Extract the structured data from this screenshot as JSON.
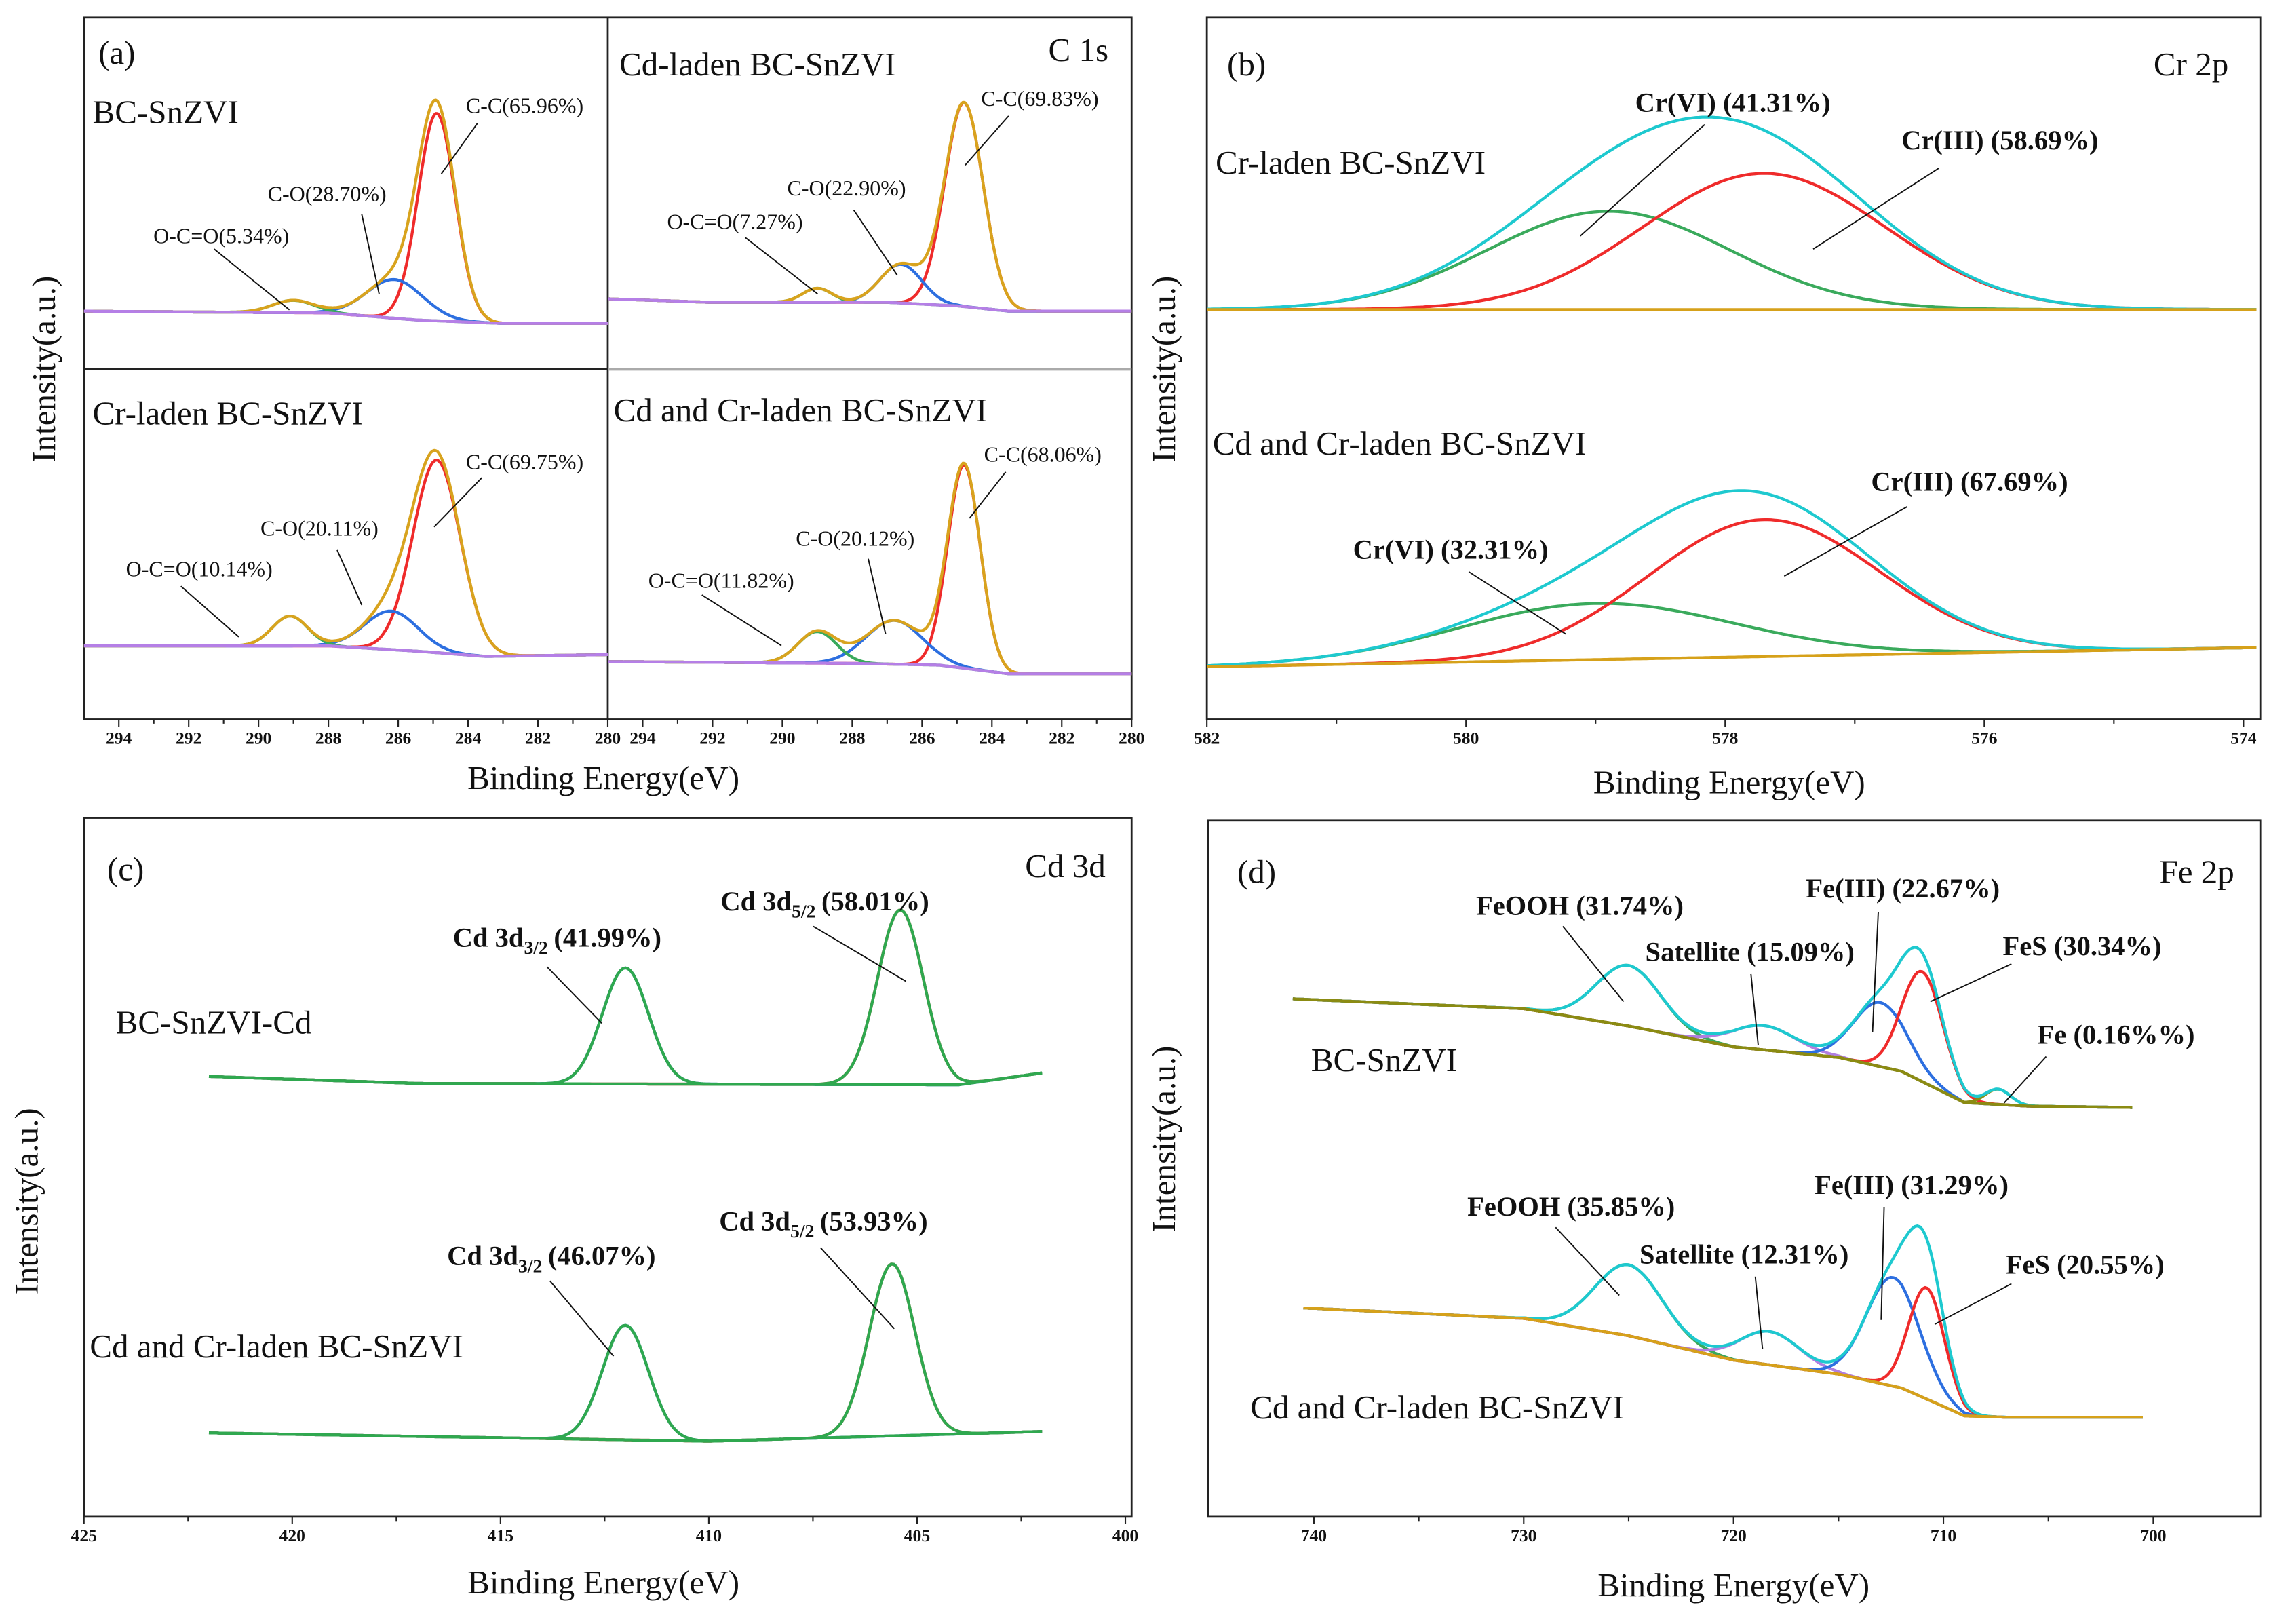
{
  "colors": {
    "envelope_c1s": "#d8a31e",
    "cc": "#ef2b2b",
    "co": "#2d6fe0",
    "oco": "#3aaa5c",
    "baseline_c1s": "#b57fe6",
    "envelope_cyan": "#1ec9cf",
    "baseline_orange": "#d6a11a",
    "baseline_green": "#2fa84f",
    "satellite": "#b07fe0",
    "fe0": "#8b8b12",
    "baseline_olive": "#8b8b12"
  },
  "chart_data": [
    {
      "type": "line",
      "panel_label": "(a)",
      "element": "C 1s",
      "xlabel": "Binding Energy(eV)",
      "ylabel": "Intensity(a.u.)",
      "xlim": [
        295,
        280
      ],
      "xticks": [
        294,
        292,
        290,
        288,
        286,
        284,
        282,
        280
      ],
      "subplots": [
        {
          "name": "BC-SnZVI",
          "ylim": [
            0,
            100
          ],
          "x_range": [
            295,
            280
          ],
          "envelope_color": "envelope_c1s",
          "baseline_color": "baseline_c1s",
          "baseline": [
            [
              295,
              16.5
            ],
            [
              288,
              16
            ],
            [
              285.5,
              14
            ],
            [
              283,
              13
            ],
            [
              280,
              13
            ]
          ],
          "peaks": [
            {
              "name": "C-C",
              "label": "C-C(65.96%)",
              "center": 284.9,
              "height": 59,
              "fwhm": 1.25,
              "color": "cc"
            },
            {
              "name": "C-O",
              "label": "C-O(28.70%)",
              "center": 286.1,
              "height": 11,
              "fwhm": 1.9,
              "color": "co"
            },
            {
              "name": "O-C=O",
              "label": "O-C=O(5.34%)",
              "center": 289.0,
              "height": 3.5,
              "fwhm": 1.4,
              "color": "oco"
            }
          ]
        },
        {
          "name": "Cd-laden BC-SnZVI",
          "ylim": [
            0,
            100
          ],
          "x_range": [
            295,
            280
          ],
          "envelope_color": "envelope_c1s",
          "baseline_color": "baseline_c1s",
          "baseline": [
            [
              295,
              20
            ],
            [
              292,
              19
            ],
            [
              287,
              19
            ],
            [
              285,
              18
            ],
            [
              283.5,
              16.5
            ],
            [
              280,
              16.5
            ]
          ],
          "peaks": [
            {
              "name": "C-C",
              "label": "C-C(69.83%)",
              "center": 284.8,
              "height": 58,
              "fwhm": 1.3,
              "color": "cc"
            },
            {
              "name": "C-O",
              "label": "C-O(22.90%)",
              "center": 286.6,
              "height": 11,
              "fwhm": 1.4,
              "color": "co"
            },
            {
              "name": "O-C=O",
              "label": "O-C=O(7.27%)",
              "center": 289.0,
              "height": 4,
              "fwhm": 1.0,
              "color": "oco"
            }
          ]
        },
        {
          "name": "Cr-laden BC-SnZVI",
          "ylim": [
            0,
            100
          ],
          "x_range": [
            295,
            280
          ],
          "envelope_color": "envelope_c1s",
          "baseline_color": "baseline_c1s",
          "baseline": [
            [
              295,
              21
            ],
            [
              288,
              21
            ],
            [
              285.5,
              19.5
            ],
            [
              283.5,
              18
            ],
            [
              280,
              18.5
            ]
          ],
          "peaks": [
            {
              "name": "C-C",
              "label": "C-C(69.75%)",
              "center": 284.9,
              "height": 55,
              "fwhm": 1.6,
              "color": "cc"
            },
            {
              "name": "C-O",
              "label": "C-O(20.11%)",
              "center": 286.2,
              "height": 11,
              "fwhm": 1.8,
              "color": "co"
            },
            {
              "name": "O-C=O",
              "label": "O-C=O(10.14%)",
              "center": 289.1,
              "height": 8.5,
              "fwhm": 1.2,
              "color": "oco"
            }
          ]
        },
        {
          "name": "Cd and Cr-laden BC-SnZVI",
          "ylim": [
            0,
            100
          ],
          "x_range": [
            295,
            280
          ],
          "envelope_color": "envelope_c1s",
          "baseline_color": "baseline_c1s",
          "baseline": [
            [
              295,
              16.5
            ],
            [
              288,
              16
            ],
            [
              285.5,
              15.5
            ],
            [
              283.5,
              13
            ],
            [
              280,
              13
            ]
          ],
          "peaks": [
            {
              "name": "C-C",
              "label": "C-C(68.06%)",
              "center": 284.8,
              "height": 58,
              "fwhm": 1.1,
              "color": "cc"
            },
            {
              "name": "C-O",
              "label": "C-O(20.12%)",
              "center": 286.8,
              "height": 12.5,
              "fwhm": 1.9,
              "color": "co"
            },
            {
              "name": "O-C=O",
              "label": "O-C=O(11.82%)",
              "center": 289.0,
              "height": 9,
              "fwhm": 1.3,
              "color": "oco"
            }
          ]
        }
      ]
    },
    {
      "type": "line",
      "panel_label": "(b)",
      "element": "Cr 2p",
      "xlabel": "Binding Energy(eV)",
      "ylabel": "Intensity(a.u.)",
      "xlim": [
        582,
        573.87
      ],
      "xticks": [
        582,
        580,
        578,
        576,
        574
      ],
      "subplots": [
        {
          "name": "Cr-laden BC-SnZVI",
          "ylim": [
            0,
            100
          ],
          "x_range": [
            582,
            573.9
          ],
          "envelope_color": "envelope_cyan",
          "baseline_color": "baseline_orange",
          "baseline": [
            [
              582,
              58.4
            ],
            [
              574,
              58.4
            ]
          ],
          "peaks": [
            {
              "name": "Cr(VI)",
              "label": "Cr(VI) (41.31%)",
              "center": 578.9,
              "height": 14,
              "fwhm": 2.2,
              "color": "oco"
            },
            {
              "name": "Cr(III)",
              "label": "Cr(III) (58.69%)",
              "center": 577.7,
              "height": 19.4,
              "fwhm": 2.2,
              "color": "cc"
            }
          ]
        },
        {
          "name": "Cd and Cr-laden BC-SnZVI",
          "ylim": [
            0,
            100
          ],
          "x_range": [
            582,
            573.9
          ],
          "envelope_color": "envelope_cyan",
          "baseline_color": "baseline_orange",
          "baseline": [
            [
              582,
              7.5
            ],
            [
              574,
              10.2
            ]
          ],
          "peaks": [
            {
              "name": "Cr(VI)",
              "label": "Cr(VI) (32.31%)",
              "center": 579.0,
              "height": 8,
              "fwhm": 2.5,
              "color": "oco"
            },
            {
              "name": "Cr(III)",
              "label": "Cr(III) (67.69%)",
              "center": 577.7,
              "height": 19.5,
              "fwhm": 2.1,
              "color": "cc"
            }
          ]
        }
      ]
    },
    {
      "type": "line",
      "panel_label": "(c)",
      "element": "Cd 3d",
      "xlabel": "Binding Energy(eV)",
      "ylabel": "Intensity(a.u.)",
      "xlim": [
        425,
        399.85
      ],
      "xticks": [
        425,
        420,
        415,
        410,
        405,
        400
      ],
      "subplots": [
        {
          "name": "BC-SnZVI-Cd",
          "ylim": [
            0,
            100
          ],
          "x_range": [
            422,
            402
          ],
          "envelope_color": "baseline_green",
          "baseline_color": "baseline_green",
          "baseline": [
            [
              422,
              63
            ],
            [
              417,
              62
            ],
            [
              404,
              61.8
            ],
            [
              402,
              63.5
            ]
          ],
          "peaks": [
            {
              "name": "Cd 3d3/2",
              "label_main": "Cd 3d",
              "label_sub": "3/2",
              "label_pct": "(41.99%)",
              "center": 412.0,
              "height": 16.6,
              "fwhm": 1.3,
              "color": "co"
            },
            {
              "name": "Cd 3d5/2",
              "label_main": "Cd 3d",
              "label_sub": "5/2",
              "label_pct": "(58.01%)",
              "center": 405.4,
              "height": 25,
              "fwhm": 1.3,
              "color": "cc"
            }
          ]
        },
        {
          "name": "Cd and Cr-laden BC-SnZVI",
          "ylim": [
            0,
            100
          ],
          "x_range": [
            422,
            402
          ],
          "envelope_color": "baseline_green",
          "baseline_color": "baseline_green",
          "baseline": [
            [
              422,
              12
            ],
            [
              410,
              10.8
            ],
            [
              402,
              12.2
            ]
          ],
          "peaks": [
            {
              "name": "Cd 3d3/2",
              "label_main": "Cd 3d",
              "label_sub": "3/2",
              "label_pct": "(46.07%)",
              "center": 412.0,
              "height": 16.4,
              "fwhm": 1.3,
              "color": "co"
            },
            {
              "name": "Cd 3d5/2",
              "label_main": "Cd 3d",
              "label_sub": "5/2",
              "label_pct": "(53.93%)",
              "center": 405.6,
              "height": 24.6,
              "fwhm": 1.3,
              "color": "cc"
            }
          ]
        }
      ]
    },
    {
      "type": "line",
      "panel_label": "(d)",
      "element": "Fe 2p",
      "xlabel": "Binding Energy(eV)",
      "ylabel": "Intensity(a.u.)",
      "xlim": [
        745.03,
        694.9
      ],
      "xticks": [
        740,
        730,
        720,
        710,
        700
      ],
      "subplots": [
        {
          "name": "BC-SnZVI",
          "ylim": [
            0,
            100
          ],
          "x_range": [
            741,
            701
          ],
          "envelope_color": "envelope_cyan",
          "baseline_color": "baseline_olive",
          "baseline": [
            [
              741,
              74.4
            ],
            [
              730,
              73
            ],
            [
              725,
              70.5
            ],
            [
              720,
              67.5
            ],
            [
              715,
              66
            ],
            [
              712,
              64
            ],
            [
              709,
              59.5
            ],
            [
              706,
              59
            ],
            [
              701,
              58.8
            ]
          ],
          "peaks": [
            {
              "name": "FeOOH",
              "label": "FeOOH (31.74%)",
              "center": 725,
              "height": 8.7,
              "fwhm": 3.6,
              "color": "oco"
            },
            {
              "name": "Satellite",
              "label": "Satellite (15.09%)",
              "center": 718.6,
              "height": 3.5,
              "fwhm": 3.6,
              "color": "satellite"
            },
            {
              "name": "Fe(III)",
              "label": "Fe(III) (22.67%)",
              "center": 713.0,
              "height": 9.2,
              "fwhm": 3.0,
              "color": "co"
            },
            {
              "name": "FeS",
              "label": "FeS (30.34%)",
              "center": 711.0,
              "height": 15.8,
              "fwhm": 2.3,
              "color": "cc"
            },
            {
              "name": "Fe",
              "label": "Fe (0.16%%)",
              "center": 707.4,
              "height": 2.2,
              "fwhm": 1.4,
              "color": "fe0"
            }
          ]
        },
        {
          "name": "Cd and Cr-laden BC-SnZVI",
          "ylim": [
            0,
            100
          ],
          "x_range": [
            740.5,
            700.5
          ],
          "envelope_color": "envelope_cyan",
          "baseline_color": "baseline_orange",
          "baseline": [
            [
              740.5,
              30
            ],
            [
              730,
              28.5
            ],
            [
              725,
              26
            ],
            [
              720,
              22.5
            ],
            [
              715,
              20.5
            ],
            [
              712,
              18.5
            ],
            [
              709,
              14.5
            ],
            [
              707,
              14.3
            ],
            [
              700.5,
              14.3
            ]
          ],
          "peaks": [
            {
              "name": "FeOOH",
              "label": "FeOOH (35.85%)",
              "center": 725,
              "height": 10.2,
              "fwhm": 3.8,
              "color": "oco"
            },
            {
              "name": "Satellite",
              "label": "Satellite (12.31%)",
              "center": 718.3,
              "height": 4.8,
              "fwhm": 3.4,
              "color": "satellite"
            },
            {
              "name": "Fe(III)",
              "label": "Fe(III) (31.29%)",
              "center": 712.4,
              "height": 15.6,
              "fwhm": 3.0,
              "color": "co"
            },
            {
              "name": "FeS",
              "label": "FeS (20.55%)",
              "center": 710.8,
              "height": 16,
              "fwhm": 2.0,
              "color": "cc"
            }
          ]
        }
      ]
    }
  ]
}
